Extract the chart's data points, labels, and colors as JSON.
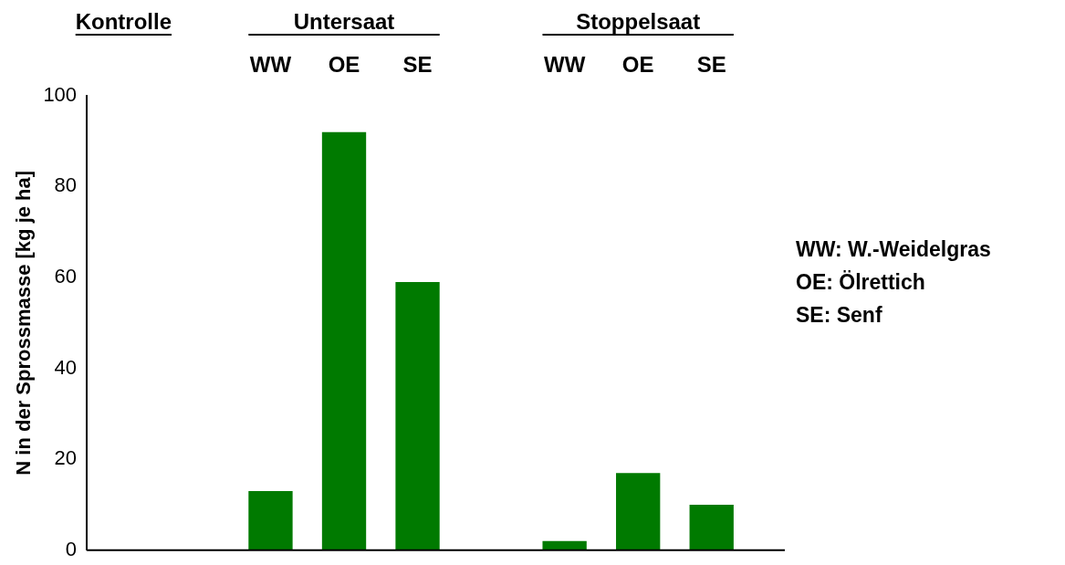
{
  "chart_data": {
    "type": "bar",
    "ylabel": "N in der Sprossmasse [kg je ha]",
    "categories": [
      null,
      null,
      "WW",
      "OE",
      "SE",
      null,
      "WW",
      "OE",
      "SE"
    ],
    "values": [
      0,
      null,
      13,
      92,
      59,
      null,
      2,
      17,
      10
    ],
    "color": "#007a00",
    "ylim": [
      0,
      100
    ],
    "yticks": [
      0,
      20,
      40,
      60,
      80,
      100
    ],
    "grid": false,
    "legend": false,
    "annotations": [
      "Kontrolle",
      "Untersaat",
      "Stoppelsaat",
      "WW: W.-Weidelgras",
      "OE: Ölrettich",
      "SE: Senf"
    ]
  }
}
